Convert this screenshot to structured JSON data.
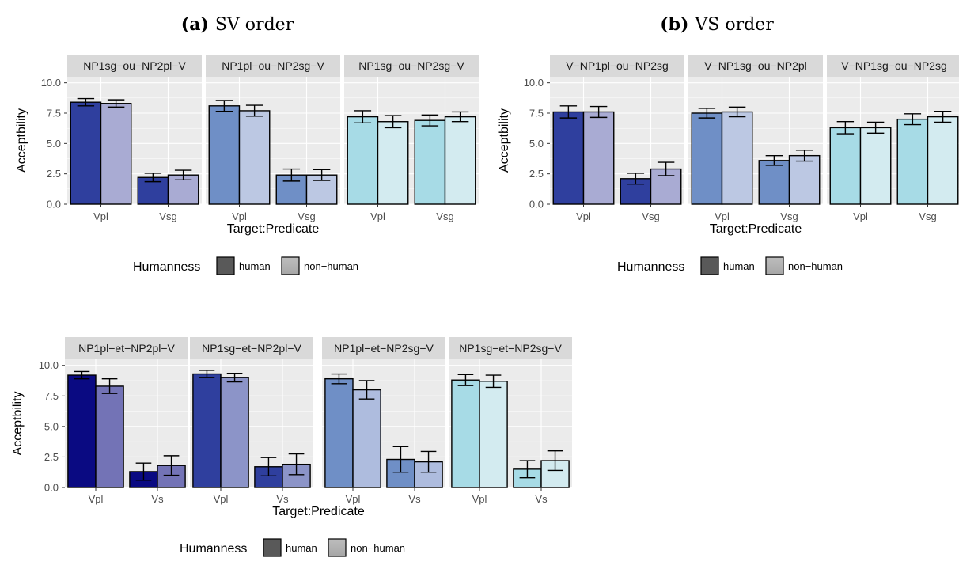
{
  "captions": [
    {
      "label": "(a)",
      "text": "SV order"
    },
    {
      "label": "(b)",
      "text": "VS order"
    }
  ],
  "colors": {
    "panel_bg": "#ebebeb",
    "strip_bg": "#d9d9d9",
    "grid": "#ffffff",
    "legend_human": "#595959",
    "legend_nonhuman_top": "#bdbdbd",
    "legend_nonhuman_bottom": "#a6a6a6"
  },
  "chart_data": [
    {
      "type": "bar",
      "xlabel": "Target:Predicate",
      "ylabel": "Acceptbility",
      "ylim": [
        0,
        10.5
      ],
      "yticks": [
        "0.0",
        "2.5",
        "5.0",
        "7.5",
        "10.0"
      ],
      "categories": [
        "Vpl",
        "Vsg"
      ],
      "legend": {
        "title": "Humanness",
        "entries": [
          "human",
          "non−human"
        ],
        "placement": "bottom"
      },
      "facets": [
        {
          "name": "NP1sg−ou−NP2pl−V",
          "human_color": "#2f3f9e",
          "nonhuman_color": "#a9abd3",
          "human": [
            8.4,
            2.2
          ],
          "human_err": [
            0.3,
            0.35
          ],
          "nonhuman": [
            8.3,
            2.4
          ],
          "nonhuman_err": [
            0.3,
            0.4
          ]
        },
        {
          "name": "NP1pl−ou−NP2sg−V",
          "human_color": "#6f8fc6",
          "nonhuman_color": "#bcc8e3",
          "human": [
            8.1,
            2.4
          ],
          "human_err": [
            0.45,
            0.5
          ],
          "nonhuman": [
            7.7,
            2.4
          ],
          "nonhuman_err": [
            0.45,
            0.45
          ]
        },
        {
          "name": "NP1sg−ou−NP2sg−V",
          "human_color": "#a7dbe6",
          "nonhuman_color": "#d3ebf0",
          "human": [
            7.2,
            6.9
          ],
          "human_err": [
            0.5,
            0.45
          ],
          "nonhuman": [
            6.8,
            7.2
          ],
          "nonhuman_err": [
            0.5,
            0.4
          ]
        }
      ]
    },
    {
      "type": "bar",
      "xlabel": "Target:Predicate",
      "ylabel": "Acceptbility",
      "ylim": [
        0,
        10.5
      ],
      "yticks": [
        "0.0",
        "2.5",
        "5.0",
        "7.5",
        "10.0"
      ],
      "categories": [
        "Vpl",
        "Vsg"
      ],
      "legend": {
        "title": "Humanness",
        "entries": [
          "human",
          "non−human"
        ],
        "placement": "bottom"
      },
      "facets": [
        {
          "name": "V−NP1pl−ou−NP2sg",
          "human_color": "#2f3f9e",
          "nonhuman_color": "#a9abd3",
          "human": [
            7.6,
            2.1
          ],
          "human_err": [
            0.5,
            0.45
          ],
          "nonhuman": [
            7.6,
            2.9
          ],
          "nonhuman_err": [
            0.45,
            0.55
          ]
        },
        {
          "name": "V−NP1sg−ou−NP2pl",
          "human_color": "#6f8fc6",
          "nonhuman_color": "#bcc8e3",
          "human": [
            7.5,
            3.6
          ],
          "human_err": [
            0.4,
            0.4
          ],
          "nonhuman": [
            7.6,
            4.0
          ],
          "nonhuman_err": [
            0.4,
            0.45
          ]
        },
        {
          "name": "V−NP1sg−ou−NP2sg",
          "human_color": "#a7dbe6",
          "nonhuman_color": "#d3ebf0",
          "human": [
            6.3,
            7.0
          ],
          "human_err": [
            0.5,
            0.45
          ],
          "nonhuman": [
            6.3,
            7.2
          ],
          "nonhuman_err": [
            0.45,
            0.45
          ]
        }
      ]
    },
    {
      "type": "bar",
      "xlabel": "Target:Predicate",
      "ylabel": "Acceptbility",
      "ylim": [
        0,
        10.5
      ],
      "yticks": [
        "0.0",
        "2.5",
        "5.0",
        "7.5",
        "10.0"
      ],
      "categories": [
        "Vpl",
        "Vs"
      ],
      "legend": {
        "title": "Humanness",
        "entries": [
          "human",
          "non−human"
        ],
        "placement": "bottom"
      },
      "facets": [
        {
          "name": "NP1pl−et−NP2pl−V",
          "human_color": "#0a0a82",
          "nonhuman_color": "#7373b6",
          "human": [
            9.2,
            1.3
          ],
          "human_err": [
            0.3,
            0.7
          ],
          "nonhuman": [
            8.3,
            1.8
          ],
          "nonhuman_err": [
            0.6,
            0.8
          ]
        },
        {
          "name": "NP1sg−et−NP2pl−V",
          "human_color": "#2f3f9e",
          "nonhuman_color": "#8c94c8",
          "human": [
            9.3,
            1.7
          ],
          "human_err": [
            0.3,
            0.75
          ],
          "nonhuman": [
            9.0,
            1.9
          ],
          "nonhuman_err": [
            0.35,
            0.85
          ]
        },
        {
          "name": "NP1pl−et−NP2sg−V",
          "human_color": "#6f8fc6",
          "nonhuman_color": "#aebcde",
          "human": [
            8.9,
            2.3
          ],
          "human_err": [
            0.4,
            1.05
          ],
          "nonhuman": [
            8.0,
            2.1
          ],
          "nonhuman_err": [
            0.75,
            0.85
          ]
        },
        {
          "name": "NP1sg−et−NP2sg−V",
          "human_color": "#a7dbe6",
          "nonhuman_color": "#d3ebf0",
          "human": [
            8.8,
            1.5
          ],
          "human_err": [
            0.45,
            0.7
          ],
          "nonhuman": [
            8.7,
            2.2
          ],
          "nonhuman_err": [
            0.5,
            0.8
          ]
        }
      ]
    }
  ]
}
